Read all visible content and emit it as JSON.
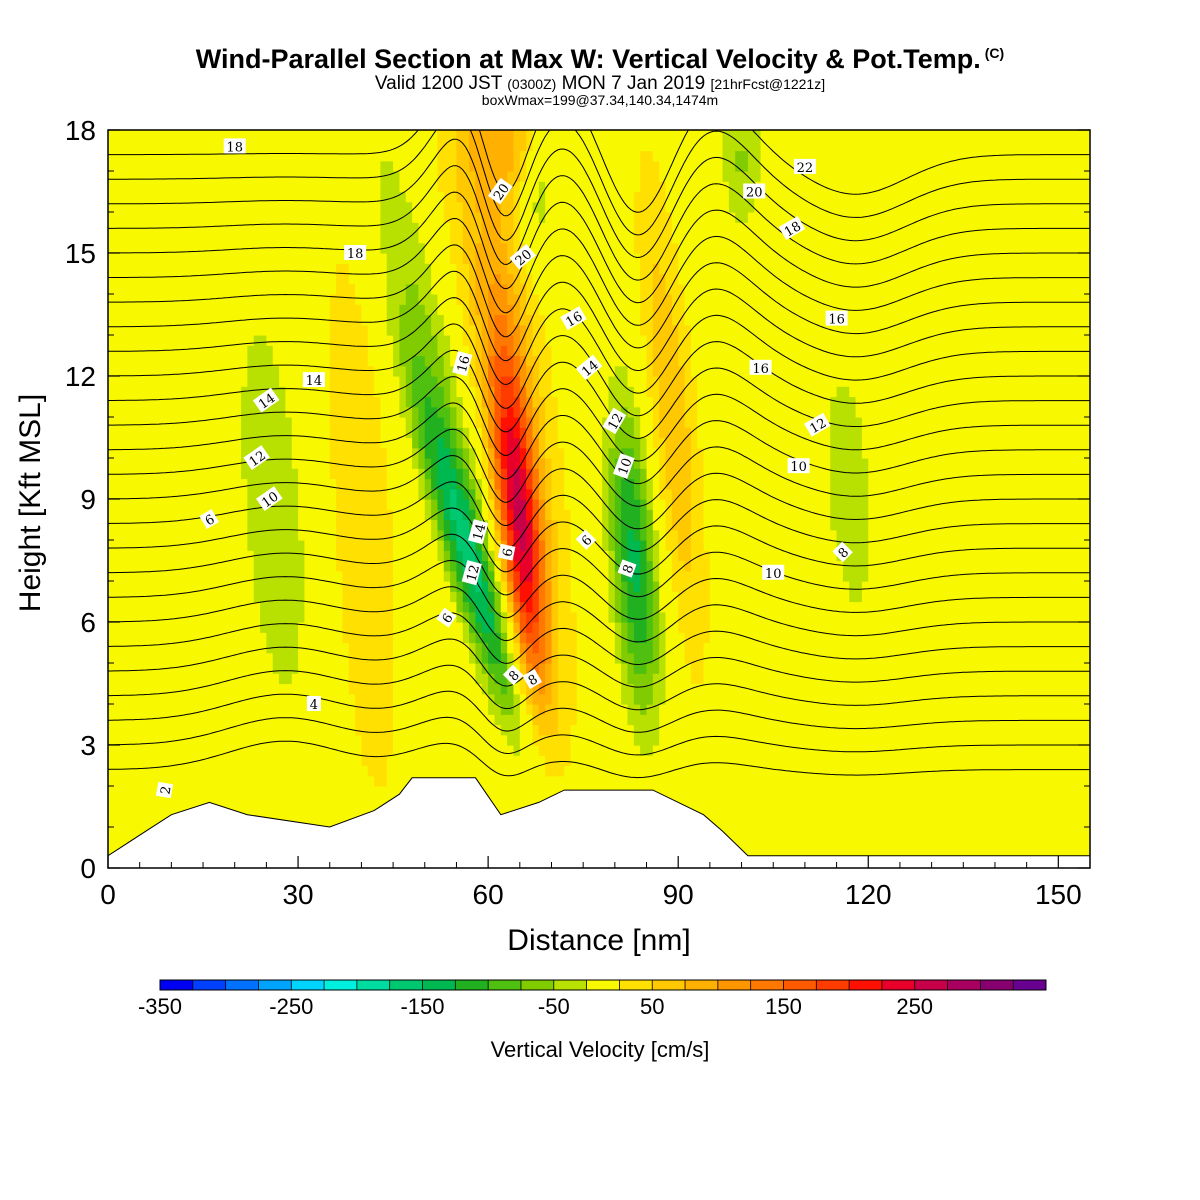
{
  "title": {
    "main": "Wind-Parallel Section at Max W: Vertical Velocity & Pot.Temp.",
    "copyright": "(C)",
    "valid_prefix": "Valid 1200 JST",
    "valid_utc": "(0300Z)",
    "valid_date": "MON 7 Jan 2019",
    "forecast": "[21hrFcst@1221z]",
    "box_info": "boxWmax=199@37.34,140.34,1474m"
  },
  "chart_data": {
    "type": "heatmap",
    "xlabel": "Distance [nm]",
    "ylabel": "Height [Kft MSL]",
    "xlim": [
      0,
      155
    ],
    "ylim": [
      0,
      18
    ],
    "x_ticks": [
      "0",
      "30",
      "60",
      "90",
      "120",
      "150"
    ],
    "y_ticks": [
      "0",
      "3",
      "6",
      "9",
      "12",
      "15",
      "18"
    ],
    "colorbar": {
      "title": "Vertical Velocity [cm/s]",
      "tick_labels": [
        "-350",
        "-250",
        "-150",
        "-50",
        "50",
        "150",
        "250"
      ],
      "bins": [
        -350,
        -325,
        -300,
        -275,
        -250,
        -225,
        -200,
        -175,
        -150,
        -125,
        -100,
        -75,
        -50,
        -25,
        25,
        50,
        75,
        100,
        125,
        150,
        175,
        200,
        225,
        250,
        275,
        300,
        325
      ],
      "colors": [
        "#0000f2",
        "#0040ff",
        "#0072ff",
        "#00a4ff",
        "#00d4ff",
        "#00f0e0",
        "#00dca0",
        "#00c870",
        "#00b850",
        "#20b020",
        "#50c010",
        "#80cc00",
        "#b8e000",
        "#f8f800",
        "#ffe000",
        "#ffc800",
        "#ffb000",
        "#ff9600",
        "#ff7800",
        "#ff5a00",
        "#ff3c00",
        "#ff1000",
        "#e8002a",
        "#c8004a",
        "#a80060",
        "#880070",
        "#680090"
      ]
    },
    "contour_labels": [
      "2",
      "4",
      "6",
      "6",
      "6",
      "6",
      "8",
      "8",
      "8",
      "8",
      "10",
      "10",
      "10",
      "10",
      "12",
      "12",
      "12",
      "12",
      "14",
      "14",
      "14",
      "14",
      "16",
      "16",
      "16",
      "16",
      "18",
      "18",
      "18",
      "20",
      "20",
      "20",
      "22"
    ],
    "terrain_kft": [
      [
        0,
        0.3
      ],
      [
        3,
        0.6
      ],
      [
        6,
        0.9
      ],
      [
        10,
        1.3
      ],
      [
        16,
        1.6
      ],
      [
        22,
        1.3
      ],
      [
        35,
        1.0
      ],
      [
        42,
        1.4
      ],
      [
        46,
        1.8
      ],
      [
        48,
        2.2
      ],
      [
        58,
        2.2
      ],
      [
        62,
        1.3
      ],
      [
        68,
        1.6
      ],
      [
        72,
        1.9
      ],
      [
        86,
        1.9
      ],
      [
        94,
        1.3
      ],
      [
        97,
        0.9
      ],
      [
        101,
        0.3
      ],
      [
        155,
        0.3
      ]
    ],
    "updraft_max_cm_s": 199,
    "updraft_max_location": "37.34,140.34,1474m"
  }
}
